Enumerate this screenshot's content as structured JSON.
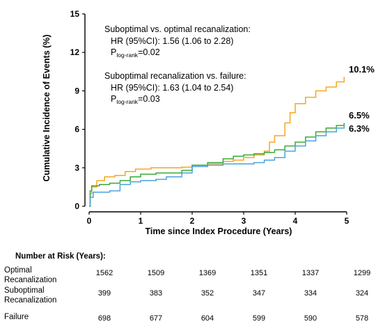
{
  "chart_data": {
    "type": "line",
    "title": "",
    "xlabel": "Time since Index Procedure (Years)",
    "ylabel": "Cumulative Incidence of Events (%)",
    "xlim": [
      0,
      5
    ],
    "ylim": [
      0,
      15
    ],
    "xticks": [
      "0",
      "1",
      "2",
      "3",
      "4",
      "5"
    ],
    "yticks": [
      "0",
      "3",
      "6",
      "9",
      "12",
      "15"
    ],
    "grid": false,
    "annotations": {
      "block1": {
        "line1": "Suboptimal vs. optimal recanalization:",
        "line2": "HR (95%CI): 1.56 (1.06 to 2.28)",
        "p_main": "P",
        "p_sub": "log-rank",
        "p_val": "=0.02"
      },
      "block2": {
        "line1": "Suboptimal recanalization vs. failure:",
        "line2": "HR (95%CI): 1.63 (1.04 to 2.54)",
        "p_main": "P",
        "p_sub": "log-rank",
        "p_val": "=0.03"
      }
    },
    "series": [
      {
        "color": "#f5a623",
        "end_label": "10.1%",
        "points": [
          [
            0,
            0
          ],
          [
            0.02,
            1.0
          ],
          [
            0.05,
            1.5
          ],
          [
            0.15,
            2.0
          ],
          [
            0.3,
            2.3
          ],
          [
            0.5,
            2.4
          ],
          [
            0.7,
            2.7
          ],
          [
            0.9,
            2.9
          ],
          [
            1.2,
            3.0
          ],
          [
            1.5,
            3.0
          ],
          [
            1.8,
            3.05
          ],
          [
            2.0,
            3.2
          ],
          [
            2.3,
            3.3
          ],
          [
            2.6,
            3.5
          ],
          [
            2.8,
            3.6
          ],
          [
            3.0,
            3.8
          ],
          [
            3.2,
            4.0
          ],
          [
            3.4,
            4.3
          ],
          [
            3.5,
            5.0
          ],
          [
            3.6,
            5.5
          ],
          [
            3.8,
            6.5
          ],
          [
            3.9,
            7.3
          ],
          [
            4.0,
            8.0
          ],
          [
            4.2,
            8.5
          ],
          [
            4.4,
            9.0
          ],
          [
            4.6,
            9.3
          ],
          [
            4.8,
            9.7
          ],
          [
            4.95,
            10.1
          ]
        ]
      },
      {
        "color": "#3aaa35",
        "end_label": "6.5%",
        "points": [
          [
            0,
            0
          ],
          [
            0.02,
            1.2
          ],
          [
            0.05,
            1.6
          ],
          [
            0.2,
            1.7
          ],
          [
            0.4,
            1.8
          ],
          [
            0.6,
            2.0
          ],
          [
            0.8,
            2.3
          ],
          [
            1.0,
            2.5
          ],
          [
            1.3,
            2.6
          ],
          [
            1.6,
            2.6
          ],
          [
            1.8,
            2.8
          ],
          [
            2.0,
            3.2
          ],
          [
            2.3,
            3.4
          ],
          [
            2.6,
            3.7
          ],
          [
            2.8,
            3.9
          ],
          [
            3.0,
            4.0
          ],
          [
            3.2,
            4.1
          ],
          [
            3.4,
            4.2
          ],
          [
            3.6,
            4.4
          ],
          [
            3.8,
            4.7
          ],
          [
            4.0,
            5.0
          ],
          [
            4.2,
            5.4
          ],
          [
            4.4,
            5.8
          ],
          [
            4.6,
            6.1
          ],
          [
            4.8,
            6.3
          ],
          [
            4.95,
            6.5
          ]
        ]
      },
      {
        "color": "#4aa3df",
        "end_label": "6.3%",
        "points": [
          [
            0,
            0
          ],
          [
            0.02,
            0.7
          ],
          [
            0.08,
            1.1
          ],
          [
            0.4,
            1.2
          ],
          [
            0.6,
            1.7
          ],
          [
            0.8,
            1.9
          ],
          [
            1.0,
            2.0
          ],
          [
            1.3,
            2.1
          ],
          [
            1.5,
            2.3
          ],
          [
            1.8,
            2.6
          ],
          [
            2.0,
            3.1
          ],
          [
            2.3,
            3.2
          ],
          [
            2.6,
            3.3
          ],
          [
            2.9,
            3.3
          ],
          [
            3.2,
            3.4
          ],
          [
            3.4,
            3.6
          ],
          [
            3.6,
            3.8
          ],
          [
            3.8,
            4.3
          ],
          [
            4.0,
            4.7
          ],
          [
            4.2,
            5.1
          ],
          [
            4.4,
            5.5
          ],
          [
            4.6,
            5.8
          ],
          [
            4.8,
            6.1
          ],
          [
            4.95,
            6.3
          ]
        ]
      }
    ]
  },
  "risk_table": {
    "title": "Number at Risk (Years):",
    "rows": [
      {
        "label_line1": "Optimal",
        "label_line2": "Recanalization",
        "values": [
          "1562",
          "1509",
          "1369",
          "1351",
          "1337",
          "1299"
        ]
      },
      {
        "label_line1": "Suboptimal",
        "label_line2": "Recanalization",
        "values": [
          "399",
          "383",
          "352",
          "347",
          "334",
          "324"
        ]
      },
      {
        "label_line1": "Failure",
        "label_line2": "",
        "values": [
          "698",
          "677",
          "604",
          "599",
          "590",
          "578"
        ]
      }
    ]
  }
}
